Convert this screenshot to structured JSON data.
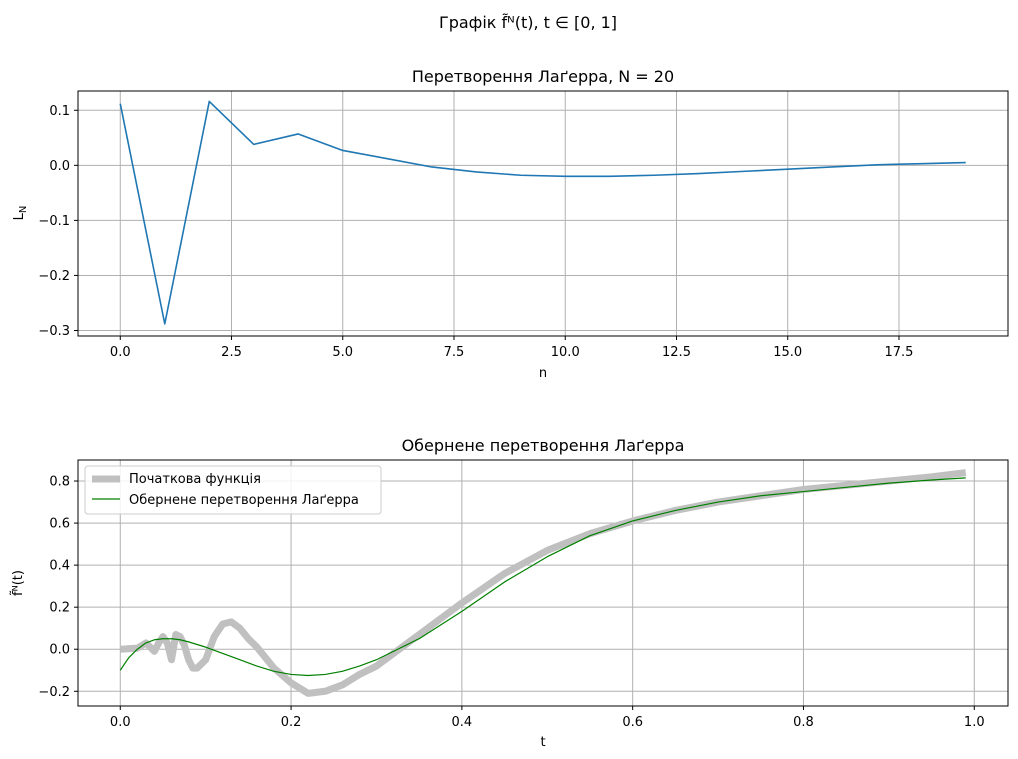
{
  "figure": {
    "suptitle": "Графік f̃ᴺ(t), t ∈ [0, 1]"
  },
  "chart_data": [
    {
      "type": "line",
      "title": "Перетворення Лаґерра, N = 20",
      "xlabel": "n",
      "ylabel": "L_N",
      "xlim": [
        -0.95,
        19.95
      ],
      "ylim": [
        -0.31,
        0.135
      ],
      "xticks": [
        0.0,
        2.5,
        5.0,
        7.5,
        10.0,
        12.5,
        15.0,
        17.5
      ],
      "xtick_labels": [
        "0.0",
        "2.5",
        "5.0",
        "7.5",
        "10.0",
        "12.5",
        "15.0",
        "17.5"
      ],
      "yticks": [
        -0.3,
        -0.2,
        -0.1,
        0.0,
        0.1
      ],
      "ytick_labels": [
        "−0.3",
        "−0.2",
        "−0.1",
        "0.0",
        "0.1"
      ],
      "grid": true,
      "series": [
        {
          "color": "#1f77b4",
          "x": [
            0,
            1,
            2,
            3,
            4,
            5,
            6,
            7,
            8,
            9,
            10,
            11,
            12,
            13,
            14,
            15,
            16,
            17,
            18,
            19
          ],
          "y": [
            0.112,
            -0.288,
            0.116,
            0.038,
            0.057,
            0.027,
            0.012,
            -0.003,
            -0.012,
            -0.018,
            -0.02,
            -0.02,
            -0.018,
            -0.015,
            -0.011,
            -0.007,
            -0.003,
            0.001,
            0.003,
            0.005
          ]
        }
      ]
    },
    {
      "type": "line",
      "title": "Обернене перетворення Лаґерра",
      "xlabel": "t",
      "ylabel": "f̃ᴺ(t)",
      "xlim": [
        -0.0495,
        1.0395
      ],
      "ylim": [
        -0.27,
        0.9
      ],
      "xticks": [
        0.0,
        0.2,
        0.4,
        0.6,
        0.8,
        1.0
      ],
      "xtick_labels": [
        "0.0",
        "0.2",
        "0.4",
        "0.6",
        "0.8",
        "1.0"
      ],
      "yticks": [
        -0.2,
        0.0,
        0.2,
        0.4,
        0.6,
        0.8
      ],
      "ytick_labels": [
        "−0.2",
        "0.0",
        "0.2",
        "0.4",
        "0.6",
        "0.8"
      ],
      "grid": true,
      "legend_position": "upper-left",
      "series": [
        {
          "name": "Початкова функція",
          "color": "#c0c0c0",
          "line_width": 7,
          "x": [
            0.0,
            0.02,
            0.03,
            0.035,
            0.04,
            0.045,
            0.05,
            0.055,
            0.06,
            0.065,
            0.07,
            0.075,
            0.08,
            0.085,
            0.09,
            0.1,
            0.11,
            0.12,
            0.13,
            0.14,
            0.15,
            0.16,
            0.18,
            0.2,
            0.22,
            0.24,
            0.26,
            0.28,
            0.3,
            0.35,
            0.4,
            0.45,
            0.5,
            0.55,
            0.6,
            0.65,
            0.7,
            0.75,
            0.8,
            0.85,
            0.9,
            0.95,
            0.99
          ],
          "y": [
            0.0,
            0.005,
            0.03,
            0.01,
            -0.01,
            0.03,
            0.06,
            0.03,
            -0.05,
            0.07,
            0.06,
            0.02,
            -0.05,
            -0.09,
            -0.09,
            -0.05,
            0.06,
            0.12,
            0.13,
            0.1,
            0.05,
            0.01,
            -0.09,
            -0.16,
            -0.21,
            -0.2,
            -0.17,
            -0.12,
            -0.08,
            0.07,
            0.22,
            0.36,
            0.47,
            0.55,
            0.61,
            0.66,
            0.7,
            0.73,
            0.76,
            0.78,
            0.8,
            0.82,
            0.84
          ]
        },
        {
          "name": "Обернене перетворення Лаґерра",
          "color": "#008000",
          "line_width": 1.2,
          "x": [
            0.0,
            0.01,
            0.02,
            0.03,
            0.04,
            0.05,
            0.06,
            0.07,
            0.08,
            0.1,
            0.12,
            0.14,
            0.16,
            0.18,
            0.2,
            0.22,
            0.24,
            0.26,
            0.28,
            0.3,
            0.35,
            0.4,
            0.45,
            0.5,
            0.55,
            0.6,
            0.65,
            0.7,
            0.75,
            0.8,
            0.85,
            0.9,
            0.95,
            0.99
          ],
          "y": [
            -0.1,
            -0.04,
            0.0,
            0.03,
            0.045,
            0.05,
            0.05,
            0.045,
            0.035,
            0.01,
            -0.02,
            -0.05,
            -0.08,
            -0.105,
            -0.12,
            -0.125,
            -0.12,
            -0.105,
            -0.08,
            -0.05,
            0.05,
            0.18,
            0.32,
            0.44,
            0.54,
            0.61,
            0.66,
            0.7,
            0.73,
            0.75,
            0.77,
            0.79,
            0.805,
            0.815
          ]
        }
      ]
    }
  ]
}
